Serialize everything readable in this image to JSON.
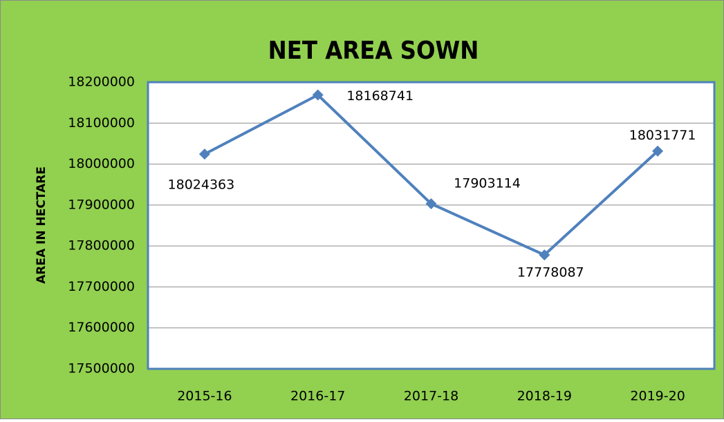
{
  "chart_data": {
    "type": "line",
    "title": "NET AREA SOWN",
    "y_label": "AREA IN HECTARE",
    "categories": [
      "2015-16",
      "2016-17",
      "2017-18",
      "2018-19",
      "2019-20"
    ],
    "series": [
      {
        "name": "Net area sown",
        "color": "#4f81bd",
        "values": [
          18024363,
          18168741,
          17903114,
          17778087,
          18031771
        ]
      }
    ],
    "ylim": [
      17500000,
      18200000
    ],
    "yticks": [
      17500000,
      17600000,
      17700000,
      17800000,
      17900000,
      18000000,
      18100000,
      18200000
    ],
    "grid": true
  }
}
